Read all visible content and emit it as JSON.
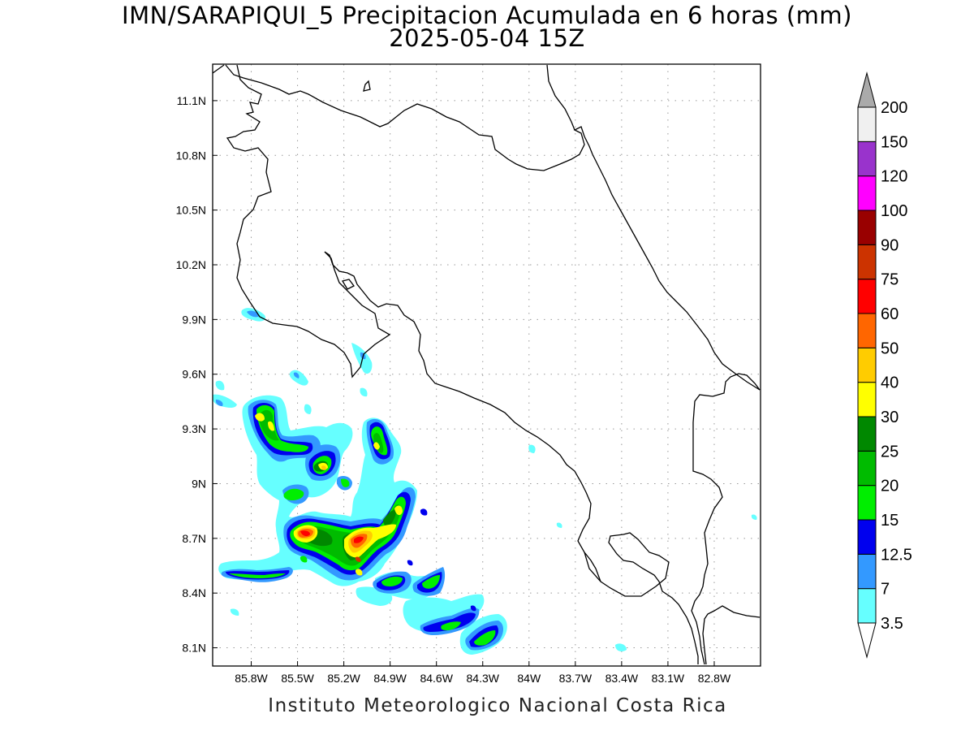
{
  "title": {
    "line1": "IMN/SARAPIQUI_5 Precipitacion Acumulada en 6 horas (mm)",
    "line2": "2025-05-04 15Z"
  },
  "footer": "Instituto Meteorologico Nacional Costa Rica",
  "map": {
    "lon_range": [
      -86.05,
      -82.5
    ],
    "lat_range": [
      8.0,
      11.3
    ],
    "lat_ticks": [
      "11.1N",
      "10.8N",
      "10.5N",
      "10.2N",
      "9.9N",
      "9.6N",
      "9.3N",
      "9N",
      "8.7N",
      "8.4N",
      "8.1N"
    ],
    "lat_values": [
      11.1,
      10.8,
      10.5,
      10.2,
      9.9,
      9.6,
      9.3,
      9.0,
      8.7,
      8.4,
      8.1
    ],
    "lon_ticks": [
      "85.8W",
      "85.5W",
      "85.2W",
      "84.9W",
      "84.6W",
      "84.3W",
      "84W",
      "83.7W",
      "83.4W",
      "83.1W",
      "82.8W"
    ],
    "lon_values": [
      -85.8,
      -85.5,
      -85.2,
      -84.9,
      -84.6,
      -84.3,
      -84.0,
      -83.7,
      -83.4,
      -83.1,
      -82.8
    ],
    "grid": true
  },
  "colorbar": {
    "labels": [
      "3.5",
      "7",
      "12.5",
      "15",
      "20",
      "25",
      "30",
      "40",
      "50",
      "60",
      "75",
      "90",
      "100",
      "120",
      "150",
      "200"
    ],
    "colors": [
      "#66ffff",
      "#3399ff",
      "#0000ee",
      "#00ee00",
      "#00bb00",
      "#008800",
      "#ffff00",
      "#ffcc00",
      "#ff6600",
      "#ff0000",
      "#cc3300",
      "#990000",
      "#ff00ff",
      "#9933cc",
      "#f0f0f0"
    ],
    "under_color": "#ffffff",
    "over_color": "#aaaaaa"
  }
}
